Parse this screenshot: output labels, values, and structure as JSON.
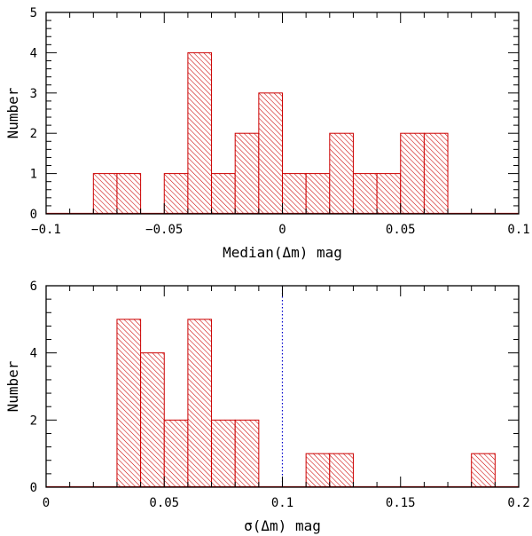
{
  "chart_data": [
    {
      "type": "bar",
      "xlabel": "Median(Δm) mag",
      "ylabel": "Number",
      "xlim": [
        -0.1,
        0.1
      ],
      "ylim": [
        0,
        5
      ],
      "xticks": [
        -0.1,
        -0.05,
        0,
        0.05,
        0.1
      ],
      "xtick_labels": [
        "−0.1",
        "−0.05",
        "0",
        "0.05",
        "0.1"
      ],
      "yticks": [
        0,
        1,
        2,
        3,
        4,
        5
      ],
      "ytick_labels": [
        "0",
        "1",
        "2",
        "3",
        "4",
        "5"
      ],
      "bin_width": 0.01,
      "bins": [
        {
          "x0": -0.08,
          "x1": -0.07,
          "count": 1
        },
        {
          "x0": -0.07,
          "x1": -0.06,
          "count": 1
        },
        {
          "x0": -0.05,
          "x1": -0.04,
          "count": 1
        },
        {
          "x0": -0.04,
          "x1": -0.03,
          "count": 4
        },
        {
          "x0": -0.03,
          "x1": -0.02,
          "count": 1
        },
        {
          "x0": -0.02,
          "x1": -0.01,
          "count": 2
        },
        {
          "x0": -0.01,
          "x1": 0.0,
          "count": 3
        },
        {
          "x0": 0.0,
          "x1": 0.01,
          "count": 1
        },
        {
          "x0": 0.01,
          "x1": 0.02,
          "count": 1
        },
        {
          "x0": 0.02,
          "x1": 0.03,
          "count": 2
        },
        {
          "x0": 0.03,
          "x1": 0.04,
          "count": 1
        },
        {
          "x0": 0.04,
          "x1": 0.05,
          "count": 1
        },
        {
          "x0": 0.05,
          "x1": 0.06,
          "count": 2
        },
        {
          "x0": 0.06,
          "x1": 0.07,
          "count": 2
        }
      ],
      "bar_color": "#cc0000",
      "grid": false
    },
    {
      "type": "bar",
      "xlabel": "σ(Δm) mag",
      "ylabel": "Number",
      "xlim": [
        0,
        0.2
      ],
      "ylim": [
        0,
        6
      ],
      "xticks": [
        0,
        0.05,
        0.1,
        0.15,
        0.2
      ],
      "xtick_labels": [
        "0",
        "0.05",
        "0.1",
        "0.15",
        "0.2"
      ],
      "yticks": [
        0,
        2,
        4,
        6
      ],
      "ytick_labels": [
        "0",
        "2",
        "4",
        "6"
      ],
      "bin_width": 0.01,
      "bins": [
        {
          "x0": 0.03,
          "x1": 0.04,
          "count": 5
        },
        {
          "x0": 0.04,
          "x1": 0.05,
          "count": 4
        },
        {
          "x0": 0.05,
          "x1": 0.06,
          "count": 2
        },
        {
          "x0": 0.06,
          "x1": 0.07,
          "count": 5
        },
        {
          "x0": 0.07,
          "x1": 0.08,
          "count": 2
        },
        {
          "x0": 0.08,
          "x1": 0.09,
          "count": 2
        },
        {
          "x0": 0.11,
          "x1": 0.12,
          "count": 1
        },
        {
          "x0": 0.12,
          "x1": 0.13,
          "count": 1
        },
        {
          "x0": 0.18,
          "x1": 0.19,
          "count": 1
        }
      ],
      "reference_line": {
        "x": 0.1,
        "style": "dotted",
        "color": "#0000cc"
      },
      "bar_color": "#cc0000",
      "grid": false
    }
  ]
}
